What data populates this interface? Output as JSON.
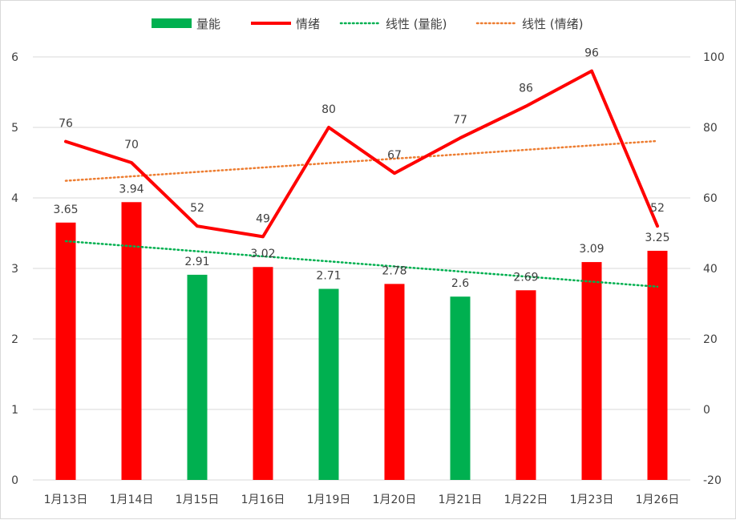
{
  "chart_data": {
    "type": "bar",
    "categories": [
      "1月13日",
      "1月14日",
      "1月15日",
      "1月16日",
      "1月19日",
      "1月20日",
      "1月21日",
      "1月22日",
      "1月23日",
      "1月26日"
    ],
    "series": [
      {
        "name": "量能",
        "type": "bar",
        "axis": "left",
        "values": [
          3.65,
          3.94,
          2.91,
          3.02,
          2.71,
          2.78,
          2.6,
          2.69,
          3.09,
          3.25
        ],
        "labels": [
          "3.65",
          "3.94",
          "2.91",
          "3.02",
          "2.71",
          "2.78",
          "2.6",
          "2.69",
          "3.09",
          "3.25"
        ],
        "bar_colors": [
          "#ff0000",
          "#ff0000",
          "#00b050",
          "#ff0000",
          "#00b050",
          "#ff0000",
          "#00b050",
          "#ff0000",
          "#ff0000",
          "#ff0000"
        ],
        "legend_color": "#00b050"
      },
      {
        "name": "情绪",
        "type": "line",
        "axis": "right",
        "values": [
          76,
          70,
          52,
          49,
          80,
          67,
          77,
          86,
          96,
          52
        ],
        "labels": [
          "76",
          "70",
          "52",
          "49",
          "80",
          "67",
          "77",
          "86",
          "96",
          "52"
        ],
        "color": "#ff0000"
      },
      {
        "name": "线性 (量能)",
        "type": "trendline",
        "of": "量能",
        "axis": "left",
        "color": "#00b050"
      },
      {
        "name": "线性 (情绪)",
        "type": "trendline",
        "of": "情绪",
        "axis": "right",
        "color": "#ed7d31"
      }
    ],
    "y_left": {
      "range": [
        0,
        6
      ],
      "ticks": [
        "0",
        "1",
        "2",
        "3",
        "4",
        "5",
        "6"
      ]
    },
    "y_right": {
      "range": [
        -20,
        100
      ],
      "ticks": [
        "-20",
        "0",
        "20",
        "40",
        "60",
        "80",
        "100"
      ]
    },
    "grid": "horizontal",
    "legend": "top"
  }
}
